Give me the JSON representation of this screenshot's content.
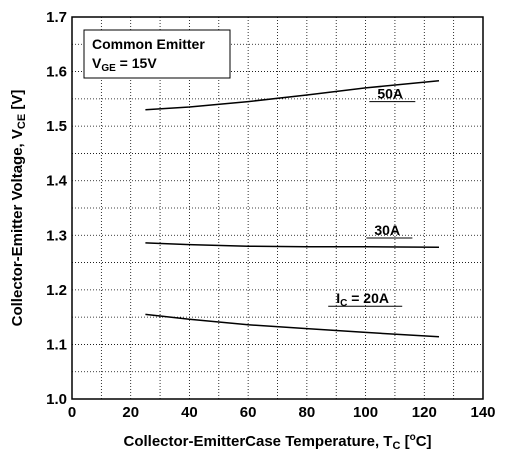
{
  "chart_data": {
    "type": "line",
    "title": "",
    "xlabel": "Collector-EmitterCase Temperature, T",
    "xlabel_sub": "C",
    "xlabel_unit_open": " [",
    "xlabel_unit_sup": "o",
    "xlabel_unit_close": "C]",
    "ylabel": "Collector-Emitter Voltage, V",
    "ylabel_sub": "CE",
    "ylabel_unit": " [V]",
    "xlim": [
      0,
      140
    ],
    "ylim": [
      1.0,
      1.7
    ],
    "x_ticks": [
      "0",
      "20",
      "40",
      "60",
      "80",
      "100",
      "120",
      "140"
    ],
    "y_ticks": [
      "1.0",
      "1.1",
      "1.2",
      "1.3",
      "1.4",
      "1.5",
      "1.6",
      "1.7"
    ],
    "grid": true,
    "annotation_box": {
      "line1": "Common Emitter",
      "line2_main": "V",
      "line2_sub": "GE",
      "line2_rest": " = 15V",
      "placement": "top-left"
    },
    "series": [
      {
        "label_main": "50A",
        "x": [
          25,
          40,
          60,
          80,
          100,
          125
        ],
        "y": [
          1.53,
          1.535,
          1.545,
          1.557,
          1.57,
          1.583
        ]
      },
      {
        "label_main": "30A",
        "x": [
          25,
          40,
          60,
          80,
          100,
          125
        ],
        "y": [
          1.286,
          1.283,
          1.28,
          1.279,
          1.279,
          1.278
        ]
      },
      {
        "label_main": "I",
        "label_sub": "C",
        "label_rest": " = 20A",
        "x": [
          25,
          40,
          60,
          80,
          100,
          125
        ],
        "y": [
          1.155,
          1.146,
          1.136,
          1.129,
          1.122,
          1.114
        ]
      }
    ]
  }
}
